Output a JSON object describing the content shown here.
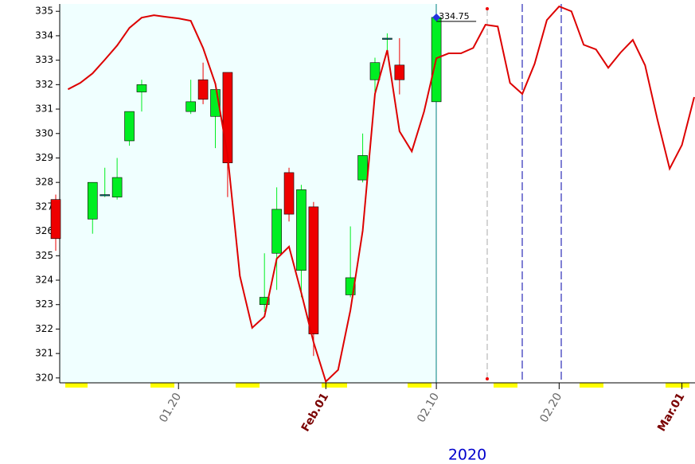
{
  "chart_data": {
    "type": "candlestick",
    "xlabel": "2020",
    "xlim": [
      "2020-01-10",
      "2020-03-02"
    ],
    "ylim": [
      319.8,
      335.3
    ],
    "yticks": [
      320,
      321,
      322,
      323,
      324,
      325,
      326,
      327,
      328,
      329,
      330,
      331,
      332,
      333,
      334,
      335
    ],
    "xticks": [
      {
        "value": "2020-01-20",
        "label": "01.20"
      },
      {
        "value": "2020-02-01",
        "label": "Feb.01"
      },
      {
        "value": "2020-02-10",
        "label": "02.10"
      },
      {
        "value": "2020-02-20",
        "label": "02.20"
      },
      {
        "value": "2020-03-01",
        "label": "Mar.01"
      }
    ],
    "series": [
      {
        "type": "candlestick",
        "up_color": "#00ee22",
        "down_color": "#ee0000",
        "x": [
          "2020-01-10",
          "2020-01-13",
          "2020-01-14",
          "2020-01-15",
          "2020-01-16",
          "2020-01-17",
          "2020-01-21",
          "2020-01-22",
          "2020-01-23",
          "2020-01-24",
          "2020-01-27",
          "2020-01-28",
          "2020-01-29",
          "2020-01-30",
          "2020-01-31",
          "2020-02-03",
          "2020-02-04",
          "2020-02-05",
          "2020-02-06",
          "2020-02-07",
          "2020-02-10"
        ],
        "open": [
          327.3,
          326.5,
          327.5,
          327.4,
          329.7,
          331.7,
          330.9,
          332.2,
          330.7,
          332.5,
          323.0,
          325.1,
          328.4,
          324.4,
          327.0,
          323.4,
          328.1,
          332.2,
          333.9,
          332.8,
          331.3
        ],
        "close": [
          325.7,
          328.0,
          327.5,
          328.2,
          330.9,
          332.0,
          331.3,
          331.4,
          331.8,
          328.8,
          323.3,
          326.9,
          326.7,
          327.7,
          321.8,
          324.1,
          329.1,
          332.9,
          333.9,
          332.2,
          334.75
        ],
        "high": [
          327.5,
          328.0,
          328.6,
          329.0,
          330.9,
          332.2,
          332.2,
          332.9,
          331.8,
          332.5,
          325.1,
          327.8,
          328.6,
          327.9,
          327.2,
          326.2,
          330.0,
          333.1,
          334.1,
          333.9,
          334.75
        ],
        "low": [
          325.2,
          325.9,
          327.4,
          327.3,
          329.5,
          330.9,
          330.8,
          331.2,
          329.4,
          327.4,
          322.7,
          323.6,
          326.4,
          323.3,
          320.9,
          323.3,
          328.0,
          331.5,
          333.3,
          331.6,
          331.3
        ]
      },
      {
        "type": "line",
        "color": "#dd0000",
        "x": [
          "2020-01-11",
          "2020-01-12",
          "2020-01-13",
          "2020-01-14",
          "2020-01-15",
          "2020-01-16",
          "2020-01-17",
          "2020-01-18",
          "2020-01-19",
          "2020-01-20",
          "2020-01-21",
          "2020-01-22",
          "2020-01-23",
          "2020-01-24",
          "2020-01-25",
          "2020-01-26",
          "2020-01-27",
          "2020-01-28",
          "2020-01-29",
          "2020-01-30",
          "2020-01-31",
          "2020-02-01",
          "2020-02-02",
          "2020-02-03",
          "2020-02-04",
          "2020-02-05",
          "2020-02-06",
          "2020-02-07",
          "2020-02-08",
          "2020-02-09",
          "2020-02-10",
          "2020-02-11",
          "2020-02-12",
          "2020-02-13",
          "2020-02-14",
          "2020-02-15",
          "2020-02-16",
          "2020-02-17",
          "2020-02-18",
          "2020-02-19",
          "2020-02-20",
          "2020-02-21",
          "2020-02-22",
          "2020-02-23",
          "2020-02-24",
          "2020-02-25",
          "2020-02-26",
          "2020-02-27",
          "2020-02-28",
          "2020-02-29",
          "2020-03-01",
          "2020-03-02"
        ],
        "values": [
          331.81,
          332.07,
          332.46,
          333.02,
          333.6,
          334.32,
          334.74,
          334.84,
          334.77,
          334.71,
          334.61,
          333.5,
          332.04,
          329.11,
          324.17,
          322.05,
          322.51,
          324.88,
          325.37,
          323.48,
          321.46,
          319.85,
          320.33,
          322.77,
          326.02,
          331.62,
          333.41,
          330.09,
          329.27,
          330.9,
          333.08,
          333.28,
          333.28,
          333.5,
          334.45,
          334.38,
          332.07,
          331.62,
          332.85,
          334.64,
          335.2,
          335.0,
          333.63,
          333.44,
          332.69,
          333.31,
          333.83,
          332.79,
          330.58,
          328.56,
          329.53,
          331.49
        ]
      }
    ]
  }
}
